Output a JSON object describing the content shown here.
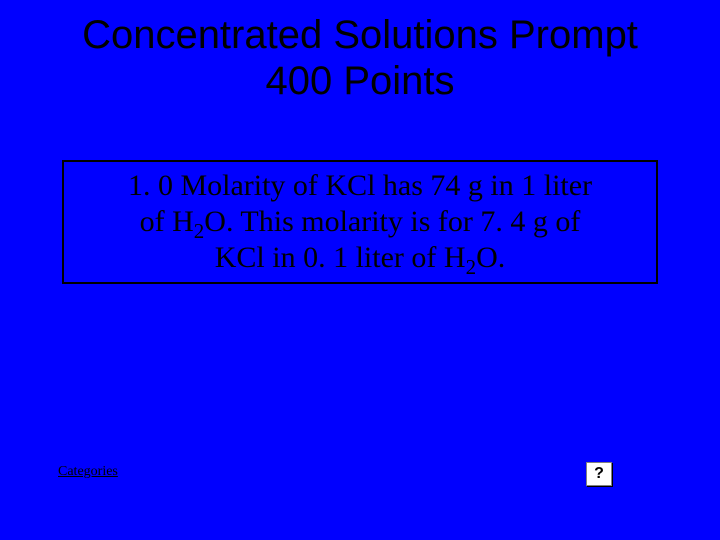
{
  "background_color": "#0000ff",
  "title": {
    "line1": "Concentrated Solutions Prompt",
    "line2": "400 Points",
    "color": "#000000",
    "fontsize": 40
  },
  "prompt": {
    "text_prefix1": "1. 0 Molarity of KCl has 74 g in 1 liter",
    "text_prefix2": "of H",
    "sub1": "2",
    "text_mid": "O. This molarity is for 7. 4 g of",
    "text_prefix3": "KCl in 0. 1 liter of H",
    "sub2": "2",
    "text_suffix": "O.",
    "border_color": "#000000",
    "text_color": "#000000",
    "fontsize": 30
  },
  "footer": {
    "categories_label": "Categories",
    "help_label": "?"
  }
}
